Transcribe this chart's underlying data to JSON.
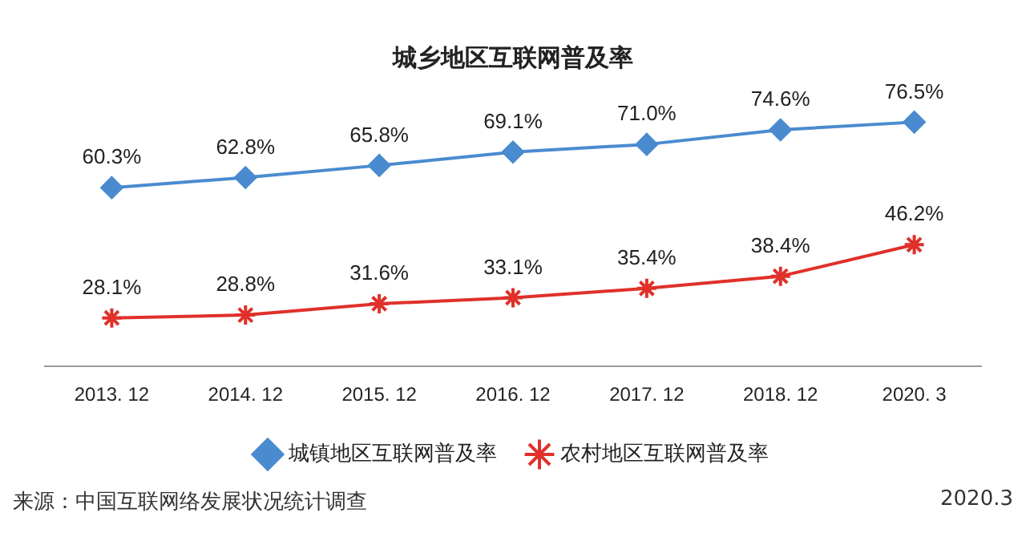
{
  "chart_data": {
    "type": "line",
    "title": "城乡地区互联网普及率",
    "categories": [
      "2013. 12",
      "2014. 12",
      "2015. 12",
      "2016. 12",
      "2017. 12",
      "2018. 12",
      "2020. 3"
    ],
    "series": [
      {
        "name": "城镇地区互联网普及率",
        "color": "#4a8bcf",
        "marker": "diamond",
        "values": [
          60.3,
          62.8,
          65.8,
          69.1,
          71.0,
          74.6,
          76.5
        ],
        "value_labels": [
          "60.3%",
          "62.8%",
          "65.8%",
          "69.1%",
          "71.0%",
          "74.6%",
          "76.5%"
        ]
      },
      {
        "name": "农村地区互联网普及率",
        "color": "#e0302a",
        "marker": "cross",
        "values": [
          28.1,
          28.8,
          31.6,
          33.1,
          35.4,
          38.4,
          46.2
        ],
        "value_labels": [
          "28.1%",
          "28.8%",
          "31.6%",
          "33.1%",
          "35.4%",
          "38.4%",
          "46.2%"
        ]
      }
    ],
    "legend": "bottom",
    "grid": false,
    "annotations": [
      "来源：中国互联网络发展状况统计调查",
      "2020.3"
    ]
  }
}
